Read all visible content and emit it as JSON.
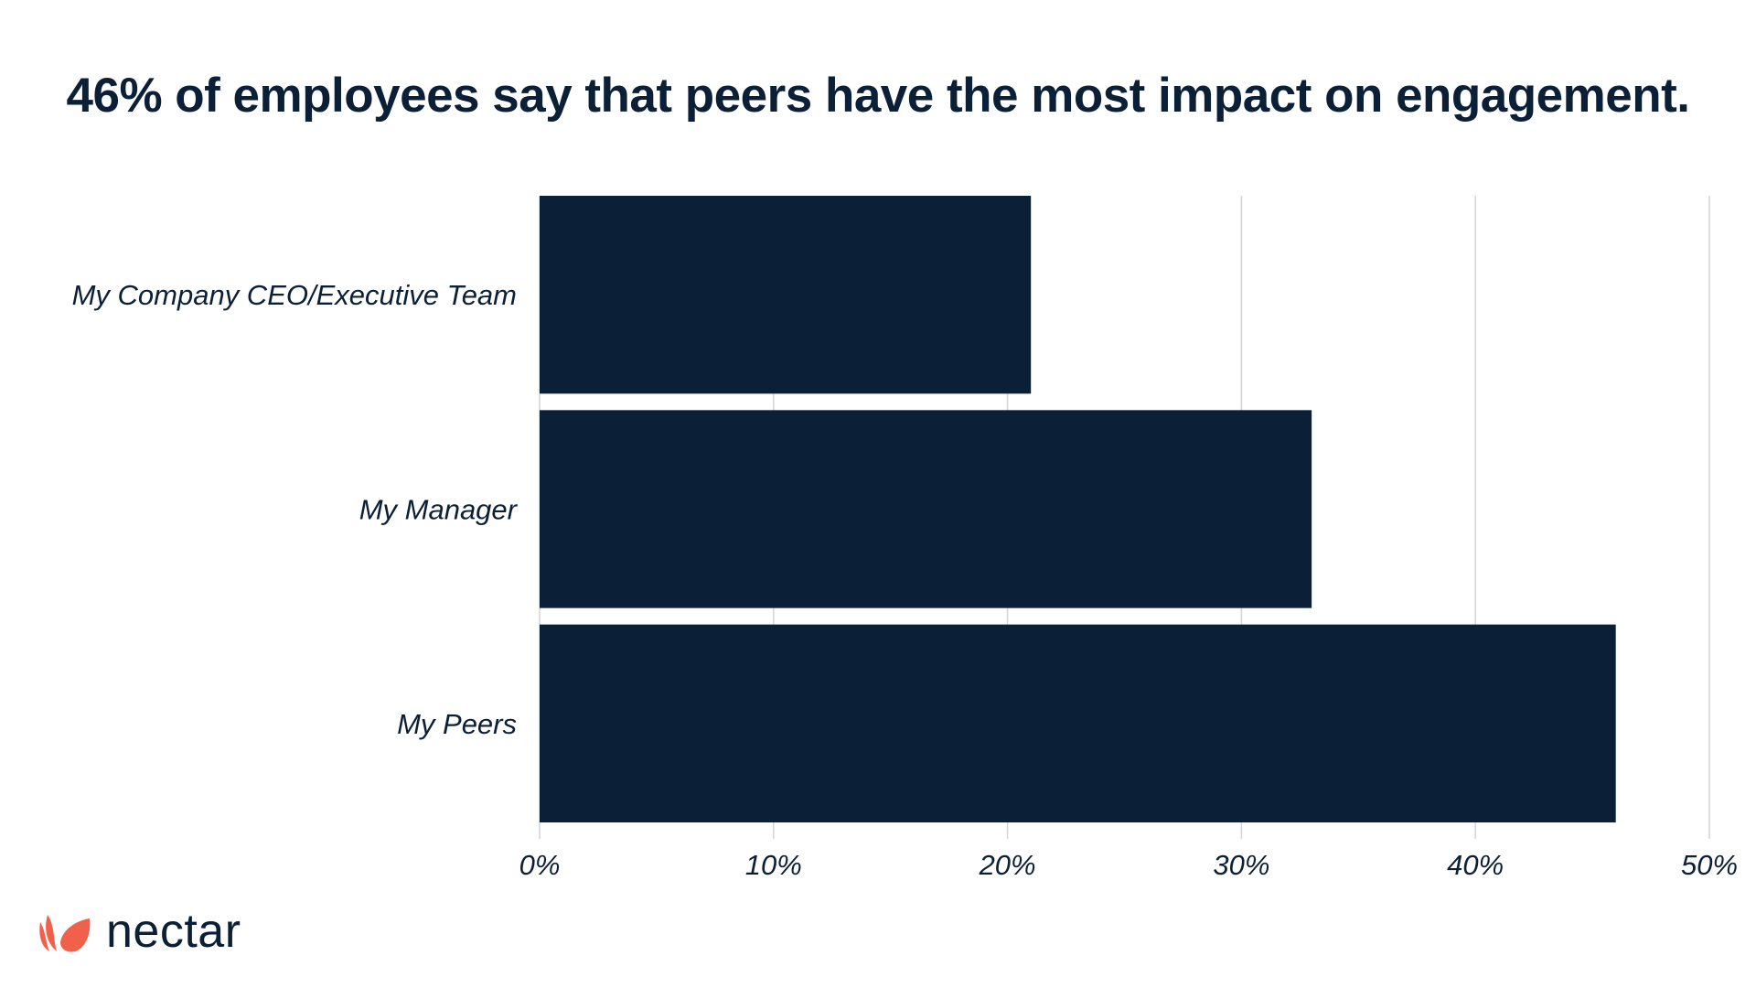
{
  "chart_data": {
    "type": "bar",
    "orientation": "horizontal",
    "title": "46% of employees say that peers have the most impact on engagement.",
    "categories": [
      "My Company CEO/Executive Team",
      "My Manager",
      "My Peers"
    ],
    "values": [
      21,
      33,
      46
    ],
    "x_ticks": [
      "0%",
      "10%",
      "20%",
      "30%",
      "40%",
      "50%"
    ],
    "xlim": [
      0,
      50
    ],
    "grid": true,
    "bar_color": "#0b1f36",
    "grid_color": "#d4d4d4"
  },
  "branding": {
    "logo_text": "nectar",
    "logo_icon": "nectar-petals-icon",
    "logo_color": "#f0604a"
  }
}
